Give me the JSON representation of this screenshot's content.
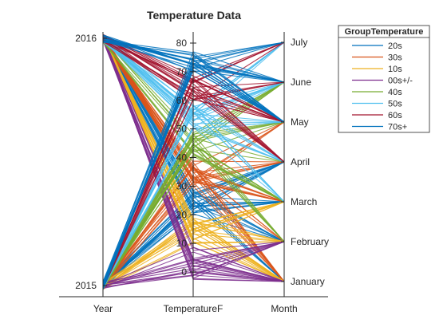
{
  "chart_data": {
    "type": "parallel-coordinates",
    "title": "Temperature Data",
    "axes": [
      {
        "name": "Year",
        "ticks": [
          "2015",
          "2016"
        ],
        "range": [
          2015,
          2016
        ]
      },
      {
        "name": "TemperatureF",
        "ticks": [
          "0",
          "10",
          "20",
          "30",
          "40",
          "50",
          "60",
          "70",
          "80"
        ],
        "range": [
          -3,
          80
        ]
      },
      {
        "name": "Month",
        "ticks": [
          "January",
          "February",
          "March",
          "April",
          "May",
          "June",
          "July"
        ],
        "range": [
          1,
          7
        ]
      }
    ],
    "legend": {
      "title": "GroupTemperature",
      "position": "top-right",
      "entries": [
        "20s",
        "30s",
        "10s",
        "00s+/-",
        "40s",
        "50s",
        "60s",
        "70s+"
      ]
    },
    "series": [
      {
        "name": "20s",
        "color": "#0072BD",
        "tempRange": [
          20,
          29
        ],
        "monthRange": [
          1,
          4
        ]
      },
      {
        "name": "30s",
        "color": "#D95319",
        "tempRange": [
          30,
          39
        ],
        "monthRange": [
          1,
          5
        ]
      },
      {
        "name": "10s",
        "color": "#EDB120",
        "tempRange": [
          10,
          19
        ],
        "monthRange": [
          1,
          3
        ]
      },
      {
        "name": "00s+/-",
        "color": "#7E2F8E",
        "tempRange": [
          -3,
          9
        ],
        "monthRange": [
          1,
          2
        ]
      },
      {
        "name": "40s",
        "color": "#77AC30",
        "tempRange": [
          40,
          49
        ],
        "monthRange": [
          2,
          6
        ]
      },
      {
        "name": "50s",
        "color": "#4DBEEE",
        "tempRange": [
          50,
          59
        ],
        "monthRange": [
          3,
          7
        ]
      },
      {
        "name": "60s",
        "color": "#A2142F",
        "tempRange": [
          60,
          69
        ],
        "monthRange": [
          4,
          7
        ]
      },
      {
        "name": "70s+",
        "color": "#0072BD",
        "tempRange": [
          70,
          77
        ],
        "monthRange": [
          5,
          7
        ]
      }
    ]
  }
}
